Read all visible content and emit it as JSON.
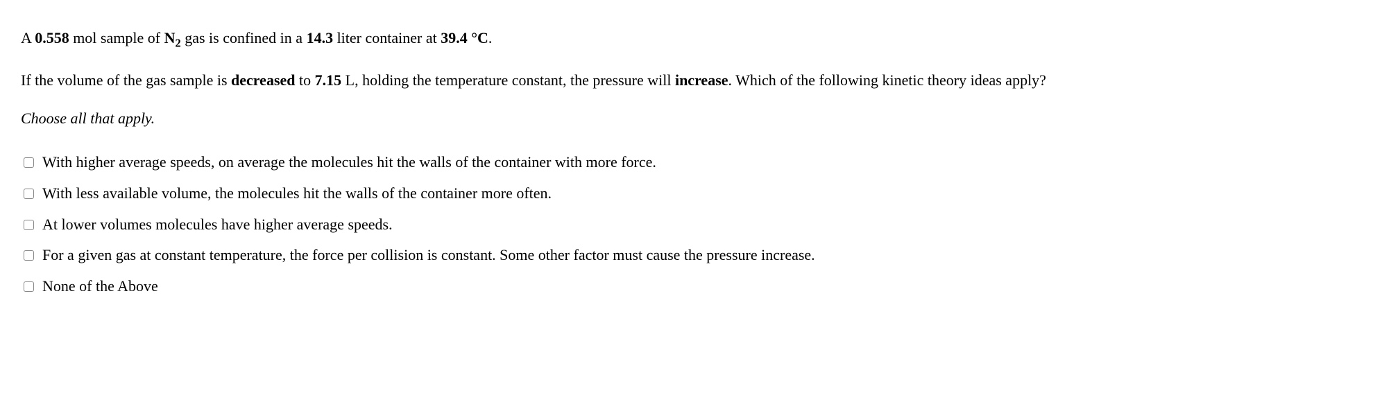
{
  "question": {
    "line1_parts": {
      "p1": "A ",
      "b1": "0.558",
      "p2": " mol sample of ",
      "b2": "N",
      "sub": "2",
      "p3": " gas is confined in a ",
      "b3": "14.3",
      "p4": " liter container at ",
      "b4": "39.4 °C",
      "p5": "."
    },
    "line2_parts": {
      "p1": "If the volume of the gas sample is ",
      "b1": "decreased",
      "p2": " to ",
      "b2": "7.15",
      "p3": " L, holding the temperature constant, the pressure will ",
      "b3": "increase",
      "p4": ". Which of the following kinetic theory ideas apply?"
    },
    "instruction": "Choose all that apply."
  },
  "options": [
    "With higher average speeds, on average the molecules hit the walls of the container with more force.",
    "With less available volume, the molecules hit the walls of the container more often.",
    "At lower volumes molecules have higher average speeds.",
    "For a given gas at constant temperature, the force per collision is constant. Some other factor must cause the pressure increase.",
    "None of the Above"
  ]
}
